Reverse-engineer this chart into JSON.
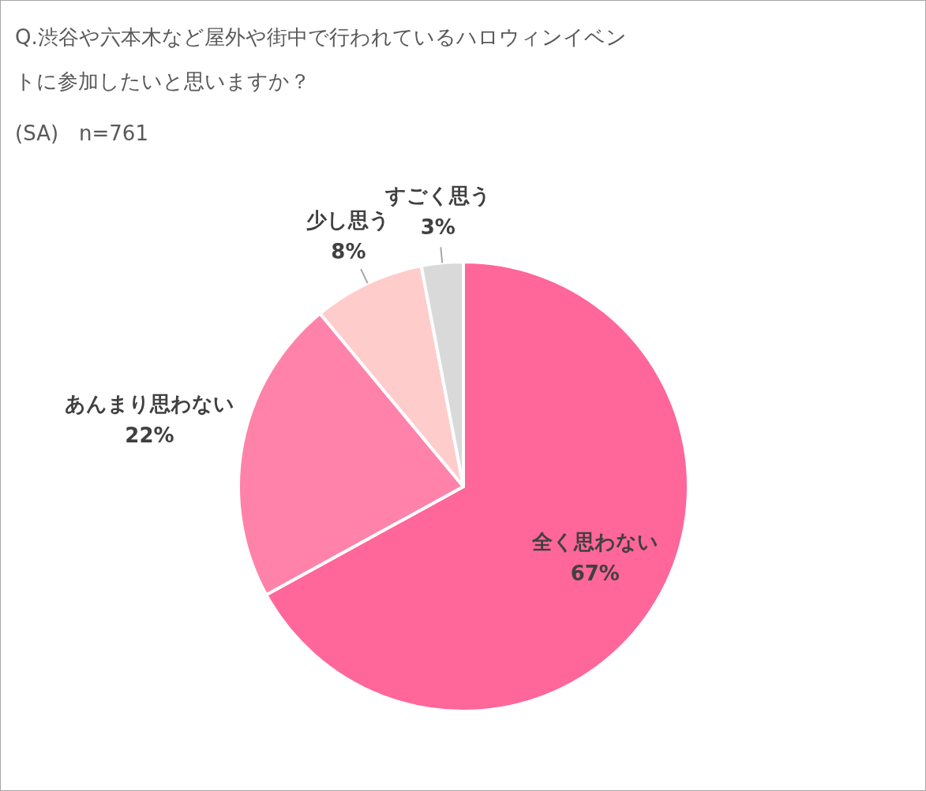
{
  "chart_data": {
    "type": "pie",
    "title": "Q.渋谷や六本木など屋外や街中で行われているハロウィンイベントに参加したいと思いますか？",
    "subtitle": "(SA)　n=761",
    "categories": [
      "全く思わない",
      "あんまり思わない",
      "少し思う",
      "すごく思う"
    ],
    "values": [
      67,
      22,
      8,
      3
    ],
    "colors": [
      "#ff6699",
      "#ff82aa",
      "#ffcccc",
      "#d9d9d9"
    ],
    "value_labels": [
      "67%",
      "22%",
      "8%",
      "3%"
    ]
  }
}
